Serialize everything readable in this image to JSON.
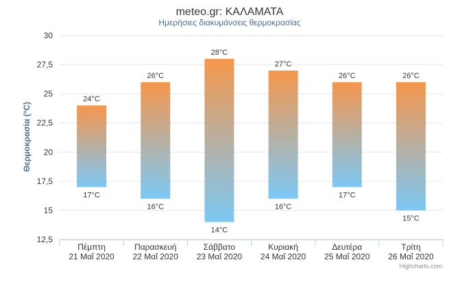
{
  "chart_data": {
    "type": "bar",
    "subtype": "columnrange",
    "title": "meteo.gr: ΚΑΛΑΜΑΤΑ",
    "subtitle": "Ημερήσιες διακυμάνσεις θερμοκρασίας",
    "ylabel": "Θερμοκρασία (°C)",
    "xlabel": "",
    "ylim": [
      12.5,
      30
    ],
    "yticks": [
      "12,5",
      "15",
      "17,5",
      "20",
      "22,5",
      "25",
      "27,5",
      "30"
    ],
    "ytick_values": [
      12.5,
      15,
      17.5,
      20,
      22.5,
      25,
      27.5,
      30
    ],
    "grid": true,
    "categories": [
      [
        "Πέμπτη",
        "21 Μαΐ 2020"
      ],
      [
        "Παρασκευή",
        "22 Μαΐ 2020"
      ],
      [
        "Σάββατο",
        "23 Μαΐ 2020"
      ],
      [
        "Κυριακή",
        "24 Μαΐ 2020"
      ],
      [
        "Δευτέρα",
        "25 Μαΐ 2020"
      ],
      [
        "Τρίτη",
        "26 Μαΐ 2020"
      ]
    ],
    "low": [
      17,
      16,
      14,
      16,
      17,
      15
    ],
    "high": [
      24,
      26,
      28,
      27,
      26,
      26
    ],
    "low_labels": [
      "17°C",
      "16°C",
      "14°C",
      "16°C",
      "17°C",
      "15°C"
    ],
    "high_labels": [
      "24°C",
      "26°C",
      "28°C",
      "27°C",
      "26°C",
      "26°C"
    ],
    "colors": {
      "top": "#f5964c",
      "bottom": "#7cc8f5",
      "grid": "#e6e6e6"
    }
  },
  "credits": "Highcharts.com"
}
